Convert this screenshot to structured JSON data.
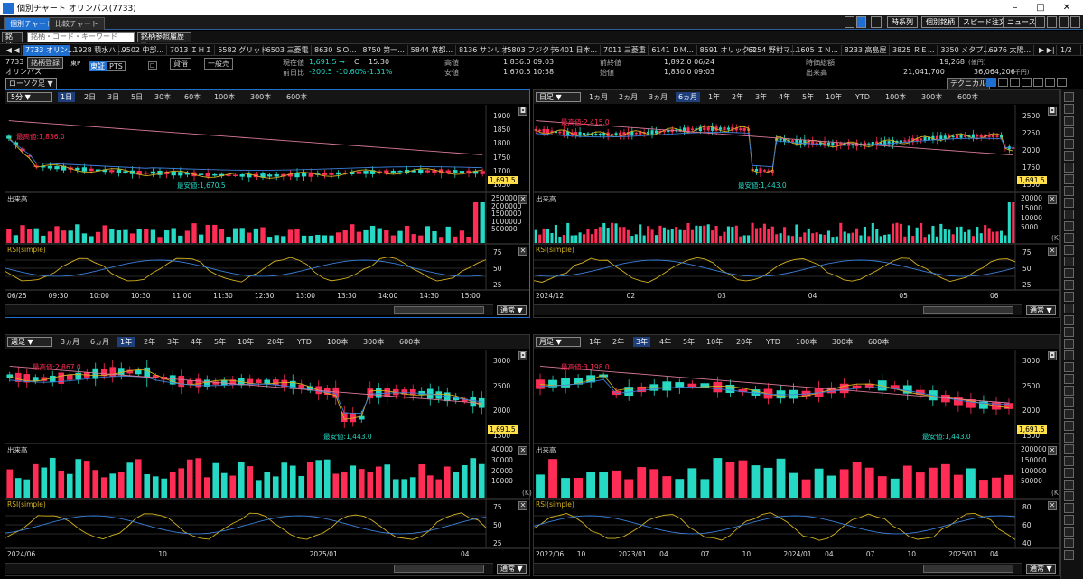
{
  "window": {
    "title": "個別チャート オリンパス(7733)",
    "minimize": "–",
    "maximize": "□",
    "close": "✕"
  },
  "tabs": [
    {
      "label": "個別チャート"
    },
    {
      "label": "比較チャート"
    }
  ],
  "header_buttons": [
    {
      "label": "時系列"
    },
    {
      "label": "個別銘柄"
    },
    {
      "label": "スピード注文"
    },
    {
      "label": "ニュース"
    }
  ],
  "page_indicator": "1/2",
  "search": {
    "label": "銘柄",
    "placeholder": "銘柄・コード・キーワード",
    "history": "銘柄参照履歴 ▼"
  },
  "ticker": [
    "7733 オリン...",
    "1928 積水ハ...",
    "9502 中部...",
    "7013 ＩＨＩ",
    "5582 グリッド",
    "6503 三菱電",
    "8630 ＳＯ...",
    "8750 第一...",
    "5844 京都...",
    "8136 サンリオ",
    "5803 フジクラ",
    "5401 日本...",
    "7011 三菱重",
    "6141 ＤＭ...",
    "8591 オリックス",
    "6254 野村マ...",
    "1605 ＩＮ...",
    "8233 高島屋",
    "3825 ＲＥ...",
    "3350 メタプ...",
    "6976 太陽..."
  ],
  "stock": {
    "code": "7733",
    "name": "オリンパス",
    "register": "銘柄登録",
    "market": "東証",
    "market2": "東P",
    "pts": "PTS",
    "loan": "貸借",
    "margin": "一般売",
    "type": "ローソク足 ▼",
    "current_label": "現在値",
    "current": "1,691.5 →",
    "c_mark": "C",
    "time": "15:30",
    "change_label": "前日比",
    "change": "-200.5",
    "change_pct": "-10.60%",
    "vwap_pct": "-1.31%",
    "high_label": "高値",
    "high": "1,836.0 09:03",
    "low_label": "安値",
    "low": "1,670.5 10:58",
    "prev_label": "前終値",
    "prev": "1,892.0 06/24",
    "open_label": "始値",
    "open": "1,830.0 09:03",
    "cap_label": "時価総額",
    "cap": "19,268",
    "cap_unit": "(億円)",
    "vol_label": "出来高",
    "vol": "21,041,700",
    "amount": "36,064,206",
    "amount_unit": "(千円)",
    "tech": "テクニカル"
  },
  "panels": [
    {
      "period": "5分",
      "ranges": [
        "1日",
        "2日",
        "3日",
        "5日",
        "30本",
        "60本",
        "100本",
        "300本",
        "600本"
      ],
      "sel": 0,
      "prices": [
        "1900",
        "1850",
        "1800",
        "1750",
        "1700",
        "1650"
      ],
      "last": "1,691.5",
      "max": "最高値:1,836.0",
      "min": "最安値:1,670.5",
      "vol_title": "出来高",
      "vol_ticks": [
        "2500000",
        "2000000",
        "1500000",
        "1000000",
        "500000"
      ],
      "vol_unit": "",
      "rsi_title": "RSI(simple)",
      "rsi_ticks": [
        "75",
        "50",
        "25"
      ],
      "xlabels": [
        "06/25",
        "09:30",
        "10:00",
        "10:30",
        "11:00",
        "11:30",
        "12:30",
        "13:00",
        "13:30",
        "14:00",
        "14:30",
        "15:00"
      ],
      "mode": "通常 ▼"
    },
    {
      "period": "日足",
      "ranges": [
        "1ヵ月",
        "2ヵ月",
        "3ヵ月",
        "6ヵ月",
        "1年",
        "2年",
        "3年",
        "4年",
        "5年",
        "10年",
        "YTD",
        "100本",
        "300本",
        "600本"
      ],
      "sel": 3,
      "prices": [
        "2500",
        "2250",
        "2000",
        "1750",
        "1500"
      ],
      "last": "1,691.5",
      "max": "最高値:2,415.0",
      "min": "最安値:1,443.0",
      "vol_title": "出来高",
      "vol_ticks": [
        "20000",
        "15000",
        "10000",
        "5000"
      ],
      "vol_unit": "(K)",
      "rsi_title": "RSI(simple)",
      "rsi_ticks": [
        "75",
        "50",
        "25"
      ],
      "xlabels": [
        "2024/12",
        "02",
        "03",
        "04",
        "05",
        "06"
      ],
      "mode": "通常 ▼"
    },
    {
      "period": "週足",
      "ranges": [
        "3ヵ月",
        "6ヵ月",
        "1年",
        "2年",
        "3年",
        "4年",
        "5年",
        "10年",
        "20年",
        "YTD",
        "100本",
        "300本",
        "600本"
      ],
      "sel": 2,
      "prices": [
        "3000",
        "2500",
        "2000",
        "1500"
      ],
      "last": "1,691.5",
      "max": "最高値:2,867.0",
      "min": "最安値:1,443.0",
      "vol_title": "出来高",
      "vol_ticks": [
        "40000",
        "30000",
        "20000",
        "10000"
      ],
      "vol_unit": "(K)",
      "rsi_title": "RSI(simple)",
      "rsi_ticks": [
        "75",
        "50",
        "25"
      ],
      "xlabels": [
        "2024/06",
        "10",
        "2025/01",
        "04"
      ],
      "mode": "通常 ▼"
    },
    {
      "period": "月足",
      "ranges": [
        "1年",
        "2年",
        "3年",
        "4年",
        "5年",
        "10年",
        "20年",
        "YTD",
        "100本",
        "300本",
        "600本"
      ],
      "sel": 2,
      "prices": [
        "3000",
        "2500",
        "2000",
        "1500"
      ],
      "last": "1,691.5",
      "max": "最高値:3,198.0",
      "min": "最安値:1,443.0",
      "vol_title": "出来高",
      "vol_ticks": [
        "200000",
        "150000",
        "100000",
        "50000"
      ],
      "vol_unit": "(K)",
      "rsi_title": "RSI(simple)",
      "rsi_ticks": [
        "80",
        "60",
        "40"
      ],
      "xlabels": [
        "2022/06",
        "10",
        "2023/01",
        "04",
        "07",
        "10",
        "2024/01",
        "04",
        "07",
        "10",
        "2025/01",
        "04"
      ],
      "mode": "通常 ▼"
    }
  ]
}
